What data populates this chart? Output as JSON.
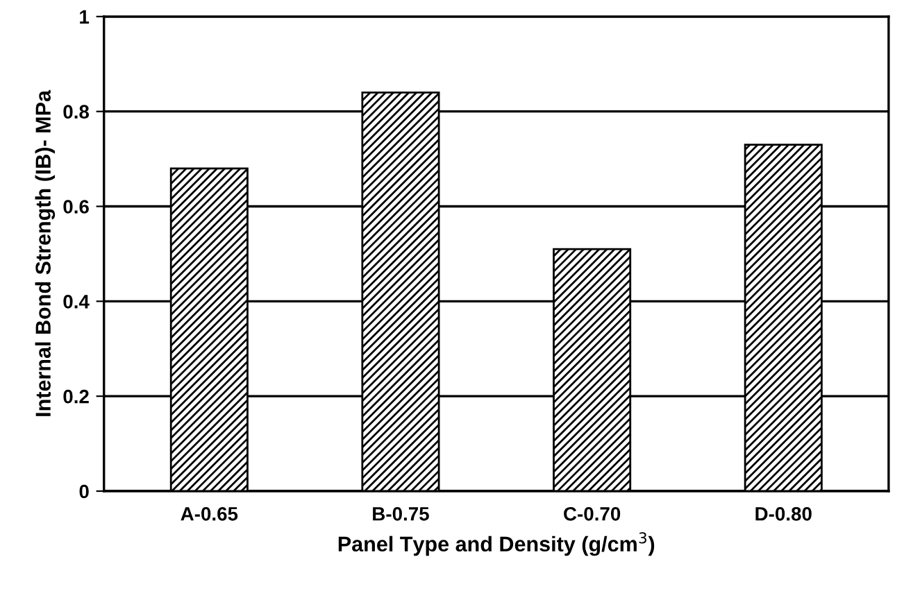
{
  "chart_data": {
    "type": "bar",
    "categories": [
      "A-0.65",
      "B-0.75",
      "C-0.70",
      "D-0.80"
    ],
    "values": [
      0.68,
      0.84,
      0.51,
      0.73
    ],
    "color": "#000000",
    "xlabel": "Panel Type and Density (g/cm$^{3}$)",
    "ylabel": "Internal Bond Strength (IB)- MPa",
    "ylim": [
      0,
      1
    ],
    "yticks": [
      0,
      0.2,
      0.4,
      0.6,
      0.8,
      1
    ],
    "grid": "y"
  }
}
